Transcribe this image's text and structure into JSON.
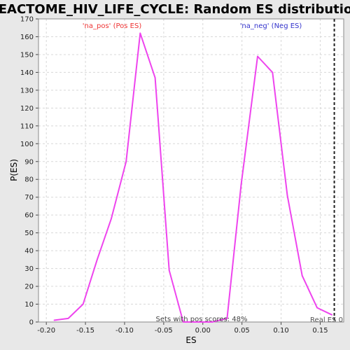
{
  "chart_data": {
    "type": "line",
    "title": "REACTOME_HIV_LIFE_CYCLE: Random ES distribution",
    "xlabel": "ES",
    "ylabel": "P(ES)",
    "xlim": [
      -0.21,
      0.18
    ],
    "ylim": [
      0,
      170
    ],
    "x_ticks": [
      -0.2,
      -0.15,
      -0.1,
      -0.05,
      0.0,
      0.05,
      0.1,
      0.15
    ],
    "x_tick_labels": [
      "-0.20",
      "-0.15",
      "-0.10",
      "-0.05",
      "0.00",
      "0.05",
      "0.10",
      "0.15"
    ],
    "y_ticks": [
      0,
      10,
      20,
      30,
      40,
      50,
      60,
      70,
      80,
      90,
      100,
      110,
      120,
      130,
      140,
      150,
      160,
      170
    ],
    "grid": true,
    "series": [
      {
        "color": "#ee44ee",
        "x": [
          -0.19,
          -0.172,
          -0.153,
          -0.135,
          -0.117,
          -0.098,
          -0.08,
          -0.061,
          -0.043,
          -0.025,
          -0.006,
          0.012,
          0.031,
          0.049,
          0.07,
          0.089,
          0.108,
          0.127,
          0.146,
          0.165
        ],
        "y": [
          1,
          2,
          10,
          35,
          58,
          90,
          162,
          137,
          29,
          0,
          0,
          0,
          2,
          77,
          149,
          140,
          71,
          26,
          8,
          4
        ]
      }
    ],
    "annotations": {
      "pos_label": "'na_pos' (Pos ES)",
      "neg_label": "'na_neg' (Neg ES)",
      "sets_label": "Sets with pos scores: 48%",
      "real_label": "Real ES 0",
      "pos_color": "#ee3333",
      "neg_color": "#3333cc"
    },
    "real_es": 0.168
  }
}
